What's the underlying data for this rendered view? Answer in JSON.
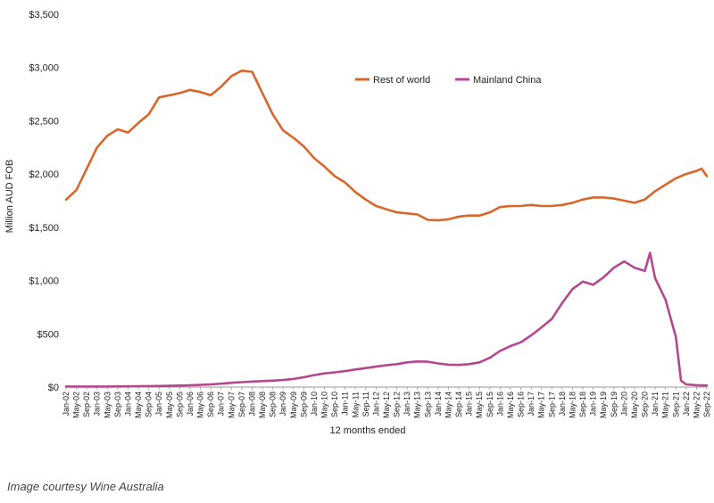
{
  "caption": "Image courtesy Wine Australia",
  "chart_data": {
    "type": "line",
    "xlabel": "12 months ended",
    "ylabel": "Million AUD FOB",
    "ylim": [
      0,
      3500
    ],
    "yticks": [
      0,
      500,
      1000,
      1500,
      2000,
      2500,
      3000,
      3500
    ],
    "ytick_labels": [
      "$0",
      "$500",
      "$1,000",
      "$1,500",
      "$2,000",
      "$2,500",
      "$3,000",
      "$3,500"
    ],
    "xrange": [
      "Jan-02",
      "Sep-22"
    ],
    "xtick_labels": [
      "Jan-02",
      "May-02",
      "Sep-02",
      "Jan-03",
      "May-03",
      "Sep-03",
      "Jan-04",
      "May-04",
      "Sep-04",
      "Jan-05",
      "May-05",
      "Sep-05",
      "Jan-06",
      "May-06",
      "Sep-06",
      "Jan-07",
      "May-07",
      "Sep-07",
      "Jan-08",
      "May-08",
      "Sep-08",
      "Jan-09",
      "May-09",
      "Sep-09",
      "Jan-10",
      "May-10",
      "Sep-10",
      "Jan-11",
      "May-11",
      "Sep-11",
      "Jan-12",
      "May-12",
      "Sep-12",
      "Jan-13",
      "May-13",
      "Sep-13",
      "Jan-14",
      "May-14",
      "Sep-14",
      "Jan-15",
      "May-15",
      "Sep-15",
      "Jan-16",
      "May-16",
      "Sep-16",
      "Jan-17",
      "May-17",
      "Sep-17",
      "Jan-18",
      "May-18",
      "Sep-18",
      "Jan-19",
      "May-19",
      "Sep-19",
      "Jan-20",
      "May-20",
      "Sep-20",
      "Jan-21",
      "May-21",
      "Sep-21",
      "Jan-22",
      "May-22",
      "Sep-22"
    ],
    "grid": false,
    "legend_position": "top-right",
    "series": [
      {
        "name": "Rest of world",
        "color": "#d9662a",
        "points": [
          [
            "Jan-02",
            1760
          ],
          [
            "May-02",
            1850
          ],
          [
            "Sep-02",
            2050
          ],
          [
            "Jan-03",
            2250
          ],
          [
            "May-03",
            2360
          ],
          [
            "Sep-03",
            2420
          ],
          [
            "Jan-04",
            2390
          ],
          [
            "May-04",
            2480
          ],
          [
            "Sep-04",
            2560
          ],
          [
            "Jan-05",
            2720
          ],
          [
            "May-05",
            2740
          ],
          [
            "Sep-05",
            2760
          ],
          [
            "Jan-06",
            2790
          ],
          [
            "May-06",
            2770
          ],
          [
            "Sep-06",
            2740
          ],
          [
            "Jan-07",
            2820
          ],
          [
            "May-07",
            2920
          ],
          [
            "Sep-07",
            2970
          ],
          [
            "Jan-08",
            2960
          ],
          [
            "May-08",
            2760
          ],
          [
            "Sep-08",
            2560
          ],
          [
            "Jan-09",
            2410
          ],
          [
            "May-09",
            2340
          ],
          [
            "Sep-09",
            2260
          ],
          [
            "Jan-10",
            2150
          ],
          [
            "May-10",
            2070
          ],
          [
            "Sep-10",
            1980
          ],
          [
            "Jan-11",
            1920
          ],
          [
            "May-11",
            1830
          ],
          [
            "Sep-11",
            1760
          ],
          [
            "Jan-12",
            1700
          ],
          [
            "May-12",
            1670
          ],
          [
            "Sep-12",
            1640
          ],
          [
            "Jan-13",
            1630
          ],
          [
            "May-13",
            1620
          ],
          [
            "Sep-13",
            1570
          ],
          [
            "Jan-14",
            1565
          ],
          [
            "May-14",
            1575
          ],
          [
            "Sep-14",
            1600
          ],
          [
            "Jan-15",
            1610
          ],
          [
            "May-15",
            1610
          ],
          [
            "Sep-15",
            1640
          ],
          [
            "Jan-16",
            1690
          ],
          [
            "May-16",
            1700
          ],
          [
            "Sep-16",
            1700
          ],
          [
            "Jan-17",
            1710
          ],
          [
            "May-17",
            1700
          ],
          [
            "Sep-17",
            1700
          ],
          [
            "Jan-18",
            1710
          ],
          [
            "May-18",
            1730
          ],
          [
            "Sep-18",
            1760
          ],
          [
            "Jan-19",
            1780
          ],
          [
            "May-19",
            1780
          ],
          [
            "Sep-19",
            1770
          ],
          [
            "Jan-20",
            1750
          ],
          [
            "May-20",
            1730
          ],
          [
            "Sep-20",
            1760
          ],
          [
            "Jan-21",
            1840
          ],
          [
            "May-21",
            1900
          ],
          [
            "Sep-21",
            1960
          ],
          [
            "Jan-22",
            2000
          ],
          [
            "May-22",
            2030
          ],
          [
            "Jul-22",
            2050
          ],
          [
            "Sep-22",
            1980
          ]
        ]
      },
      {
        "name": "Mainland China",
        "color": "#b5478f",
        "points": [
          [
            "Jan-02",
            5
          ],
          [
            "May-02",
            5
          ],
          [
            "Sep-02",
            5
          ],
          [
            "Jan-03",
            5
          ],
          [
            "May-03",
            5
          ],
          [
            "Sep-03",
            6
          ],
          [
            "Jan-04",
            7
          ],
          [
            "May-04",
            8
          ],
          [
            "Sep-04",
            9
          ],
          [
            "Jan-05",
            10
          ],
          [
            "May-05",
            12
          ],
          [
            "Sep-05",
            14
          ],
          [
            "Jan-06",
            17
          ],
          [
            "May-06",
            20
          ],
          [
            "Sep-06",
            25
          ],
          [
            "Jan-07",
            32
          ],
          [
            "May-07",
            40
          ],
          [
            "Sep-07",
            46
          ],
          [
            "Jan-08",
            52
          ],
          [
            "May-08",
            56
          ],
          [
            "Sep-08",
            60
          ],
          [
            "Jan-09",
            66
          ],
          [
            "May-09",
            76
          ],
          [
            "Sep-09",
            92
          ],
          [
            "Jan-10",
            112
          ],
          [
            "May-10",
            128
          ],
          [
            "Sep-10",
            138
          ],
          [
            "Jan-11",
            150
          ],
          [
            "May-11",
            165
          ],
          [
            "Sep-11",
            178
          ],
          [
            "Jan-12",
            192
          ],
          [
            "May-12",
            205
          ],
          [
            "Sep-12",
            215
          ],
          [
            "Jan-13",
            232
          ],
          [
            "May-13",
            240
          ],
          [
            "Sep-13",
            238
          ],
          [
            "Jan-14",
            222
          ],
          [
            "May-14",
            210
          ],
          [
            "Sep-14",
            208
          ],
          [
            "Jan-15",
            215
          ],
          [
            "May-15",
            232
          ],
          [
            "Sep-15",
            275
          ],
          [
            "Jan-16",
            340
          ],
          [
            "May-16",
            385
          ],
          [
            "Sep-16",
            420
          ],
          [
            "Jan-17",
            485
          ],
          [
            "May-17",
            560
          ],
          [
            "Sep-17",
            640
          ],
          [
            "Jan-18",
            790
          ],
          [
            "May-18",
            920
          ],
          [
            "Sep-18",
            990
          ],
          [
            "Jan-19",
            960
          ],
          [
            "May-19",
            1030
          ],
          [
            "Sep-19",
            1120
          ],
          [
            "Jan-20",
            1180
          ],
          [
            "May-20",
            1120
          ],
          [
            "Sep-20",
            1090
          ],
          [
            "Nov-20",
            1260
          ],
          [
            "Jan-21",
            1020
          ],
          [
            "May-21",
            820
          ],
          [
            "Sep-21",
            470
          ],
          [
            "Nov-21",
            60
          ],
          [
            "Jan-22",
            25
          ],
          [
            "May-22",
            18
          ],
          [
            "Sep-22",
            15
          ]
        ]
      }
    ]
  }
}
